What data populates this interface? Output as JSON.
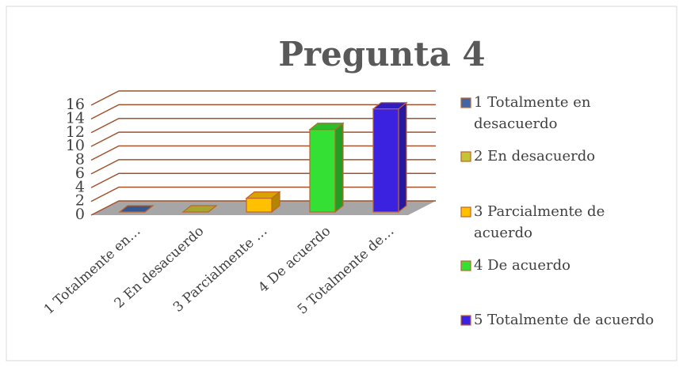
{
  "chart_data": {
    "type": "bar3d",
    "title": "Pregunta 4",
    "categories": [
      "1 Totalmente en…",
      "2 En desacuerdo",
      "3 Parcialmente …",
      "4 De acuerdo",
      "5 Totalmente de…"
    ],
    "legend": [
      "1 Totalmente en desacuerdo",
      "2 En desacuerdo",
      "3 Parcialmente de acuerdo",
      "4 De acuerdo",
      "5 Totalmente de acuerdo"
    ],
    "values": [
      0,
      0,
      2,
      12,
      15
    ],
    "colors": [
      "#3f67a8",
      "#c4c437",
      "#ffc000",
      "#33e033",
      "#3a22e0"
    ],
    "ylim": [
      0,
      16
    ],
    "yticks": [
      0,
      2,
      4,
      6,
      8,
      10,
      12,
      14,
      16
    ],
    "grid": true
  }
}
